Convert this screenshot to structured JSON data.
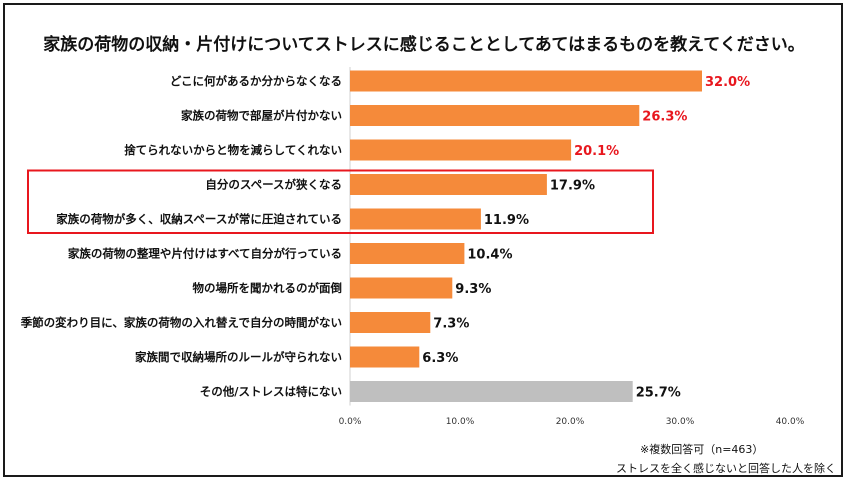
{
  "chart_data": {
    "type": "bar",
    "orientation": "horizontal",
    "title": "家族の荷物の収納・片付けについてストレスに感じることとしてあてはまるものを教えてください。",
    "categories": [
      "どこに何があるか分からなくなる",
      "家族の荷物で部屋が片付かない",
      "捨てられないからと物を減らしてくれない",
      "自分のスペースが狭くなる",
      "家族の荷物が多く、収納スペースが常に圧迫されている",
      "家族の荷物の整理や片付けはすべて自分が行っている",
      "物の場所を聞かれるのが面倒",
      "季節の変わり目に、家族の荷物の入れ替えで自分の時間がない",
      "家族間で収納場所のルールが守られない",
      "その他/ストレスは特にない"
    ],
    "values": [
      32.0,
      26.3,
      20.1,
      17.9,
      11.9,
      10.4,
      9.3,
      7.3,
      6.3,
      25.7
    ],
    "value_labels": [
      "32.0%",
      "26.3%",
      "20.1%",
      "17.9%",
      "11.9%",
      "10.4%",
      "9.3%",
      "7.3%",
      "6.3%",
      "25.7%"
    ],
    "xlim": [
      0,
      40
    ],
    "xticks": [
      "0.0%",
      "10.0%",
      "20.0%",
      "30.0%",
      "40.0%"
    ],
    "highlight_value_labels": [
      0,
      1,
      2
    ],
    "boxed_categories": [
      3,
      4
    ],
    "gray_bars": [
      9
    ],
    "colors": {
      "bar": "#F58A3A",
      "bar_other": "#BFBFBF",
      "highlight_label": "#E8171E",
      "normal_label": "#111111",
      "box": "#E8171E"
    }
  },
  "footnote": {
    "line1": "※複数回答可（n=463）",
    "line2": "ストレスを全く感じないと回答した人を除く"
  }
}
